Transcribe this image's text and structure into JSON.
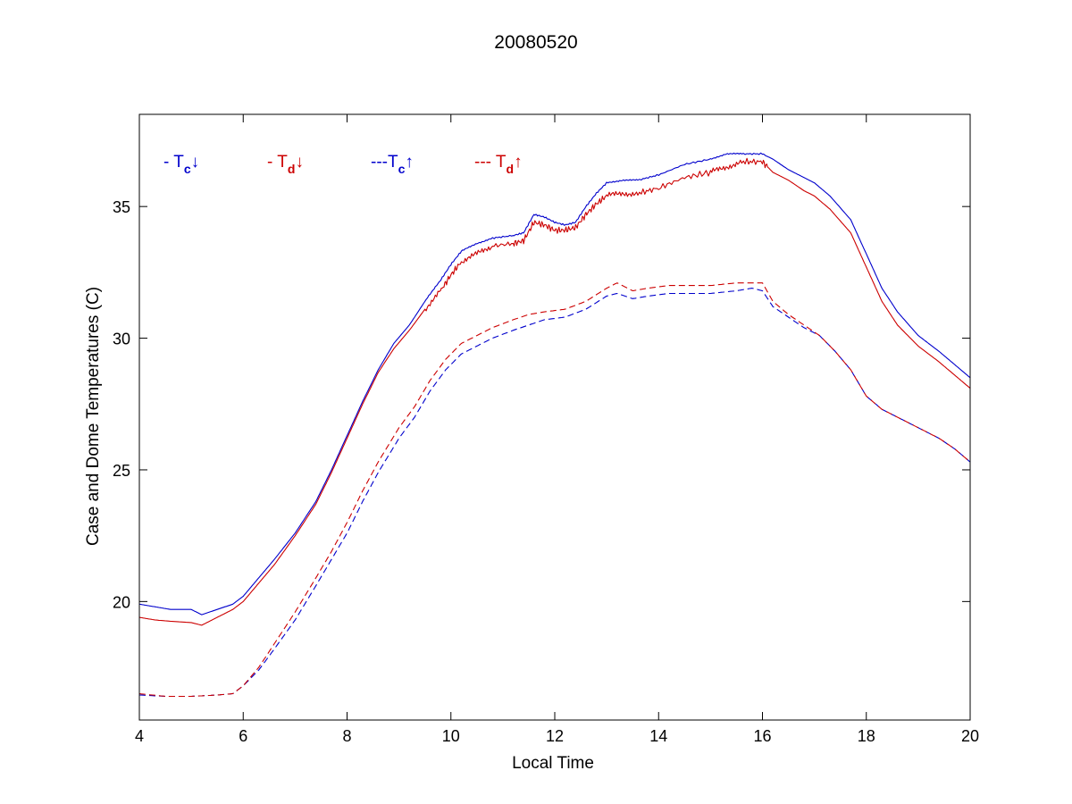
{
  "chart_data": {
    "type": "line",
    "title": "20080520",
    "xlabel": "Local Time",
    "ylabel": "Case and Dome Temperatures (C)",
    "xlim": [
      4,
      20
    ],
    "ylim": [
      15.5,
      38.5
    ],
    "xticks": [
      4,
      6,
      8,
      10,
      12,
      14,
      16,
      18,
      20
    ],
    "yticks": [
      20,
      25,
      30,
      35
    ],
    "legend": [
      {
        "prefix": "- ",
        "symbol": "T",
        "sub": "c",
        "arrow": "↓",
        "color": "#0000cc"
      },
      {
        "prefix": "- ",
        "symbol": "T",
        "sub": "d",
        "arrow": "↓",
        "color": "#cc0000"
      },
      {
        "prefix": "---",
        "symbol": "T",
        "sub": "c",
        "arrow": "↑",
        "color": "#0000cc"
      },
      {
        "prefix": "--- ",
        "symbol": "T",
        "sub": "d",
        "arrow": "↑",
        "color": "#cc0000"
      }
    ],
    "series": [
      {
        "name": "Tc↓",
        "color": "#0000cc",
        "dash": false,
        "points": [
          [
            4.0,
            19.9
          ],
          [
            4.3,
            19.8
          ],
          [
            4.6,
            19.7
          ],
          [
            5.0,
            19.7
          ],
          [
            5.2,
            19.5
          ],
          [
            5.5,
            19.7
          ],
          [
            5.8,
            19.9
          ],
          [
            6.0,
            20.2
          ],
          [
            6.3,
            20.9
          ],
          [
            6.6,
            21.6
          ],
          [
            7.0,
            22.6
          ],
          [
            7.4,
            23.8
          ],
          [
            7.7,
            25.0
          ],
          [
            8.0,
            26.3
          ],
          [
            8.3,
            27.6
          ],
          [
            8.6,
            28.8
          ],
          [
            8.9,
            29.8
          ],
          [
            9.2,
            30.5
          ],
          [
            9.5,
            31.4
          ],
          [
            9.8,
            32.2
          ],
          [
            10.0,
            32.8
          ],
          [
            10.2,
            33.3
          ],
          [
            10.5,
            33.6
          ],
          [
            10.8,
            33.8
          ],
          [
            11.2,
            33.9
          ],
          [
            11.4,
            34.0
          ],
          [
            11.6,
            34.7
          ],
          [
            11.8,
            34.6
          ],
          [
            12.0,
            34.4
          ],
          [
            12.2,
            34.3
          ],
          [
            12.4,
            34.4
          ],
          [
            12.6,
            35.0
          ],
          [
            12.8,
            35.5
          ],
          [
            13.0,
            35.9
          ],
          [
            13.3,
            36.0
          ],
          [
            13.6,
            36.0
          ],
          [
            14.0,
            36.2
          ],
          [
            14.5,
            36.6
          ],
          [
            15.0,
            36.8
          ],
          [
            15.3,
            37.0
          ],
          [
            15.6,
            37.0
          ],
          [
            16.0,
            37.0
          ],
          [
            16.2,
            36.8
          ],
          [
            16.5,
            36.4
          ],
          [
            16.8,
            36.1
          ],
          [
            17.0,
            35.9
          ],
          [
            17.3,
            35.4
          ],
          [
            17.7,
            34.5
          ],
          [
            18.0,
            33.2
          ],
          [
            18.3,
            31.9
          ],
          [
            18.6,
            31.0
          ],
          [
            19.0,
            30.1
          ],
          [
            19.4,
            29.5
          ],
          [
            19.7,
            29.0
          ],
          [
            20.0,
            28.5
          ]
        ]
      },
      {
        "name": "Td↓",
        "color": "#cc0000",
        "dash": false,
        "points": [
          [
            4.0,
            19.4
          ],
          [
            4.3,
            19.3
          ],
          [
            4.6,
            19.25
          ],
          [
            5.0,
            19.2
          ],
          [
            5.2,
            19.1
          ],
          [
            5.5,
            19.4
          ],
          [
            5.8,
            19.7
          ],
          [
            6.0,
            20.0
          ],
          [
            6.3,
            20.7
          ],
          [
            6.6,
            21.4
          ],
          [
            7.0,
            22.5
          ],
          [
            7.4,
            23.7
          ],
          [
            7.7,
            24.9
          ],
          [
            8.0,
            26.2
          ],
          [
            8.3,
            27.5
          ],
          [
            8.6,
            28.7
          ],
          [
            8.9,
            29.6
          ],
          [
            9.2,
            30.3
          ],
          [
            9.5,
            31.1
          ],
          [
            9.8,
            31.8
          ],
          [
            10.0,
            32.4
          ],
          [
            10.2,
            32.9
          ],
          [
            10.5,
            33.2
          ],
          [
            10.8,
            33.5
          ],
          [
            11.2,
            33.6
          ],
          [
            11.4,
            33.7
          ],
          [
            11.6,
            34.4
          ],
          [
            11.8,
            34.3
          ],
          [
            12.0,
            34.1
          ],
          [
            12.2,
            34.1
          ],
          [
            12.4,
            34.2
          ],
          [
            12.6,
            34.7
          ],
          [
            12.8,
            35.1
          ],
          [
            13.0,
            35.4
          ],
          [
            13.3,
            35.5
          ],
          [
            13.6,
            35.5
          ],
          [
            14.0,
            35.7
          ],
          [
            14.5,
            36.1
          ],
          [
            15.0,
            36.3
          ],
          [
            15.3,
            36.5
          ],
          [
            15.6,
            36.7
          ],
          [
            16.0,
            36.7
          ],
          [
            16.2,
            36.3
          ],
          [
            16.5,
            36.0
          ],
          [
            16.8,
            35.6
          ],
          [
            17.0,
            35.4
          ],
          [
            17.3,
            34.9
          ],
          [
            17.7,
            34.0
          ],
          [
            18.0,
            32.7
          ],
          [
            18.3,
            31.4
          ],
          [
            18.6,
            30.5
          ],
          [
            19.0,
            29.7
          ],
          [
            19.4,
            29.1
          ],
          [
            19.7,
            28.6
          ],
          [
            20.0,
            28.1
          ]
        ]
      },
      {
        "name": "Tc↑",
        "color": "#0000cc",
        "dash": true,
        "points": [
          [
            4.0,
            16.45
          ],
          [
            4.5,
            16.4
          ],
          [
            5.0,
            16.4
          ],
          [
            5.5,
            16.45
          ],
          [
            5.8,
            16.5
          ],
          [
            6.0,
            16.8
          ],
          [
            6.3,
            17.4
          ],
          [
            6.6,
            18.2
          ],
          [
            7.0,
            19.3
          ],
          [
            7.4,
            20.6
          ],
          [
            7.7,
            21.6
          ],
          [
            8.0,
            22.6
          ],
          [
            8.3,
            23.8
          ],
          [
            8.6,
            24.9
          ],
          [
            9.0,
            26.2
          ],
          [
            9.3,
            27.0
          ],
          [
            9.6,
            28.0
          ],
          [
            9.9,
            28.8
          ],
          [
            10.2,
            29.4
          ],
          [
            10.5,
            29.7
          ],
          [
            10.8,
            30.0
          ],
          [
            11.2,
            30.3
          ],
          [
            11.5,
            30.5
          ],
          [
            11.8,
            30.7
          ],
          [
            12.2,
            30.8
          ],
          [
            12.6,
            31.1
          ],
          [
            13.0,
            31.6
          ],
          [
            13.2,
            31.7
          ],
          [
            13.5,
            31.5
          ],
          [
            13.8,
            31.6
          ],
          [
            14.2,
            31.7
          ],
          [
            14.6,
            31.7
          ],
          [
            15.0,
            31.7
          ],
          [
            15.5,
            31.8
          ],
          [
            15.8,
            31.9
          ],
          [
            16.0,
            31.8
          ],
          [
            16.2,
            31.2
          ],
          [
            16.5,
            30.8
          ],
          [
            16.8,
            30.4
          ],
          [
            17.1,
            30.1
          ],
          [
            17.4,
            29.5
          ],
          [
            17.7,
            28.8
          ],
          [
            18.0,
            27.8
          ],
          [
            18.3,
            27.3
          ],
          [
            18.6,
            27.0
          ],
          [
            19.0,
            26.6
          ],
          [
            19.4,
            26.2
          ],
          [
            19.7,
            25.8
          ],
          [
            20.0,
            25.3
          ]
        ]
      },
      {
        "name": "Td↑",
        "color": "#cc0000",
        "dash": true,
        "points": [
          [
            4.0,
            16.5
          ],
          [
            4.5,
            16.4
          ],
          [
            5.0,
            16.4
          ],
          [
            5.5,
            16.45
          ],
          [
            5.8,
            16.5
          ],
          [
            6.0,
            16.8
          ],
          [
            6.3,
            17.5
          ],
          [
            6.6,
            18.4
          ],
          [
            7.0,
            19.6
          ],
          [
            7.4,
            20.9
          ],
          [
            7.7,
            21.9
          ],
          [
            8.0,
            23.0
          ],
          [
            8.3,
            24.2
          ],
          [
            8.6,
            25.3
          ],
          [
            9.0,
            26.6
          ],
          [
            9.3,
            27.4
          ],
          [
            9.6,
            28.4
          ],
          [
            9.9,
            29.2
          ],
          [
            10.2,
            29.8
          ],
          [
            10.5,
            30.1
          ],
          [
            10.8,
            30.4
          ],
          [
            11.2,
            30.7
          ],
          [
            11.5,
            30.9
          ],
          [
            11.8,
            31.0
          ],
          [
            12.2,
            31.1
          ],
          [
            12.6,
            31.4
          ],
          [
            13.0,
            31.9
          ],
          [
            13.2,
            32.1
          ],
          [
            13.5,
            31.8
          ],
          [
            13.8,
            31.9
          ],
          [
            14.2,
            32.0
          ],
          [
            14.6,
            32.0
          ],
          [
            15.0,
            32.0
          ],
          [
            15.5,
            32.1
          ],
          [
            15.8,
            32.1
          ],
          [
            16.0,
            32.1
          ],
          [
            16.2,
            31.4
          ],
          [
            16.5,
            30.9
          ],
          [
            16.8,
            30.5
          ],
          [
            17.1,
            30.1
          ],
          [
            17.4,
            29.5
          ],
          [
            17.7,
            28.8
          ],
          [
            18.0,
            27.8
          ],
          [
            18.3,
            27.3
          ],
          [
            18.6,
            27.0
          ],
          [
            19.0,
            26.6
          ],
          [
            19.4,
            26.2
          ],
          [
            19.7,
            25.8
          ],
          [
            20.0,
            25.3
          ]
        ]
      }
    ]
  }
}
